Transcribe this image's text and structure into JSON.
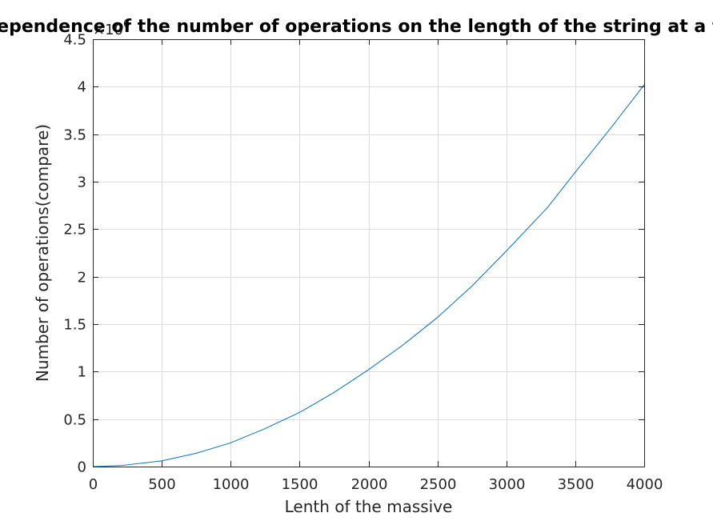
{
  "chart_data": {
    "type": "line",
    "title": "Dependence of the number of operations on the length of the string at a fixed",
    "xlabel": "Lenth of the massive",
    "ylabel": "Number of operations(compare)",
    "y_exponent_label": "×10",
    "y_exponent_power": "6",
    "xlim": [
      0,
      4000
    ],
    "ylim": [
      0,
      4.5
    ],
    "x_ticks": [
      0,
      500,
      1000,
      1500,
      2000,
      2500,
      3000,
      3500,
      4000
    ],
    "x_tick_labels": [
      "0",
      "500",
      "1000",
      "1500",
      "2000",
      "2500",
      "3000",
      "3500",
      "4000"
    ],
    "y_ticks": [
      0,
      0.5,
      1,
      1.5,
      2,
      2.5,
      3,
      3.5,
      4,
      4.5
    ],
    "y_tick_labels": [
      "0",
      "0.5",
      "1",
      "1.5",
      "2",
      "2.5",
      "3",
      "3.5",
      "4",
      "4.5"
    ],
    "grid": true,
    "series": [
      {
        "color": "#0072BD",
        "x": [
          0,
          200,
          500,
          750,
          1000,
          1250,
          1500,
          1750,
          2000,
          2250,
          2500,
          2750,
          3000,
          3300,
          3500,
          3750,
          4000
        ],
        "y": [
          0,
          0.01,
          0.06,
          0.14,
          0.25,
          0.4,
          0.57,
          0.78,
          1.02,
          1.28,
          1.57,
          1.9,
          2.27,
          2.73,
          3.1,
          3.55,
          4.02
        ]
      }
    ]
  }
}
